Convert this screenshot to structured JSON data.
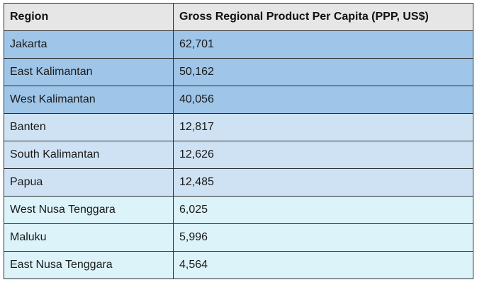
{
  "chart_data": {
    "type": "table",
    "columns": [
      "Region",
      "Gross Regional Product Per Capita (PPP, US$)"
    ],
    "rows": [
      {
        "region": "Jakarta",
        "value": "62,701",
        "tier": "high"
      },
      {
        "region": "East Kalimantan",
        "value": "50,162",
        "tier": "high"
      },
      {
        "region": "West Kalimantan",
        "value": "40,056",
        "tier": "high"
      },
      {
        "region": "Banten",
        "value": "12,817",
        "tier": "mid"
      },
      {
        "region": "South Kalimantan",
        "value": "12,626",
        "tier": "mid"
      },
      {
        "region": "Papua",
        "value": "12,485",
        "tier": "mid"
      },
      {
        "region": "West Nusa Tenggara",
        "value": "6,025",
        "tier": "low"
      },
      {
        "region": "Maluku",
        "value": "5,996",
        "tier": "low"
      },
      {
        "region": "East Nusa Tenggara",
        "value": "4,564",
        "tier": "low"
      }
    ],
    "tier_colors": {
      "header": "#e6e6e6",
      "high": "#9fc5e8",
      "mid": "#cfe2f3",
      "low": "#dcf3fa"
    }
  }
}
